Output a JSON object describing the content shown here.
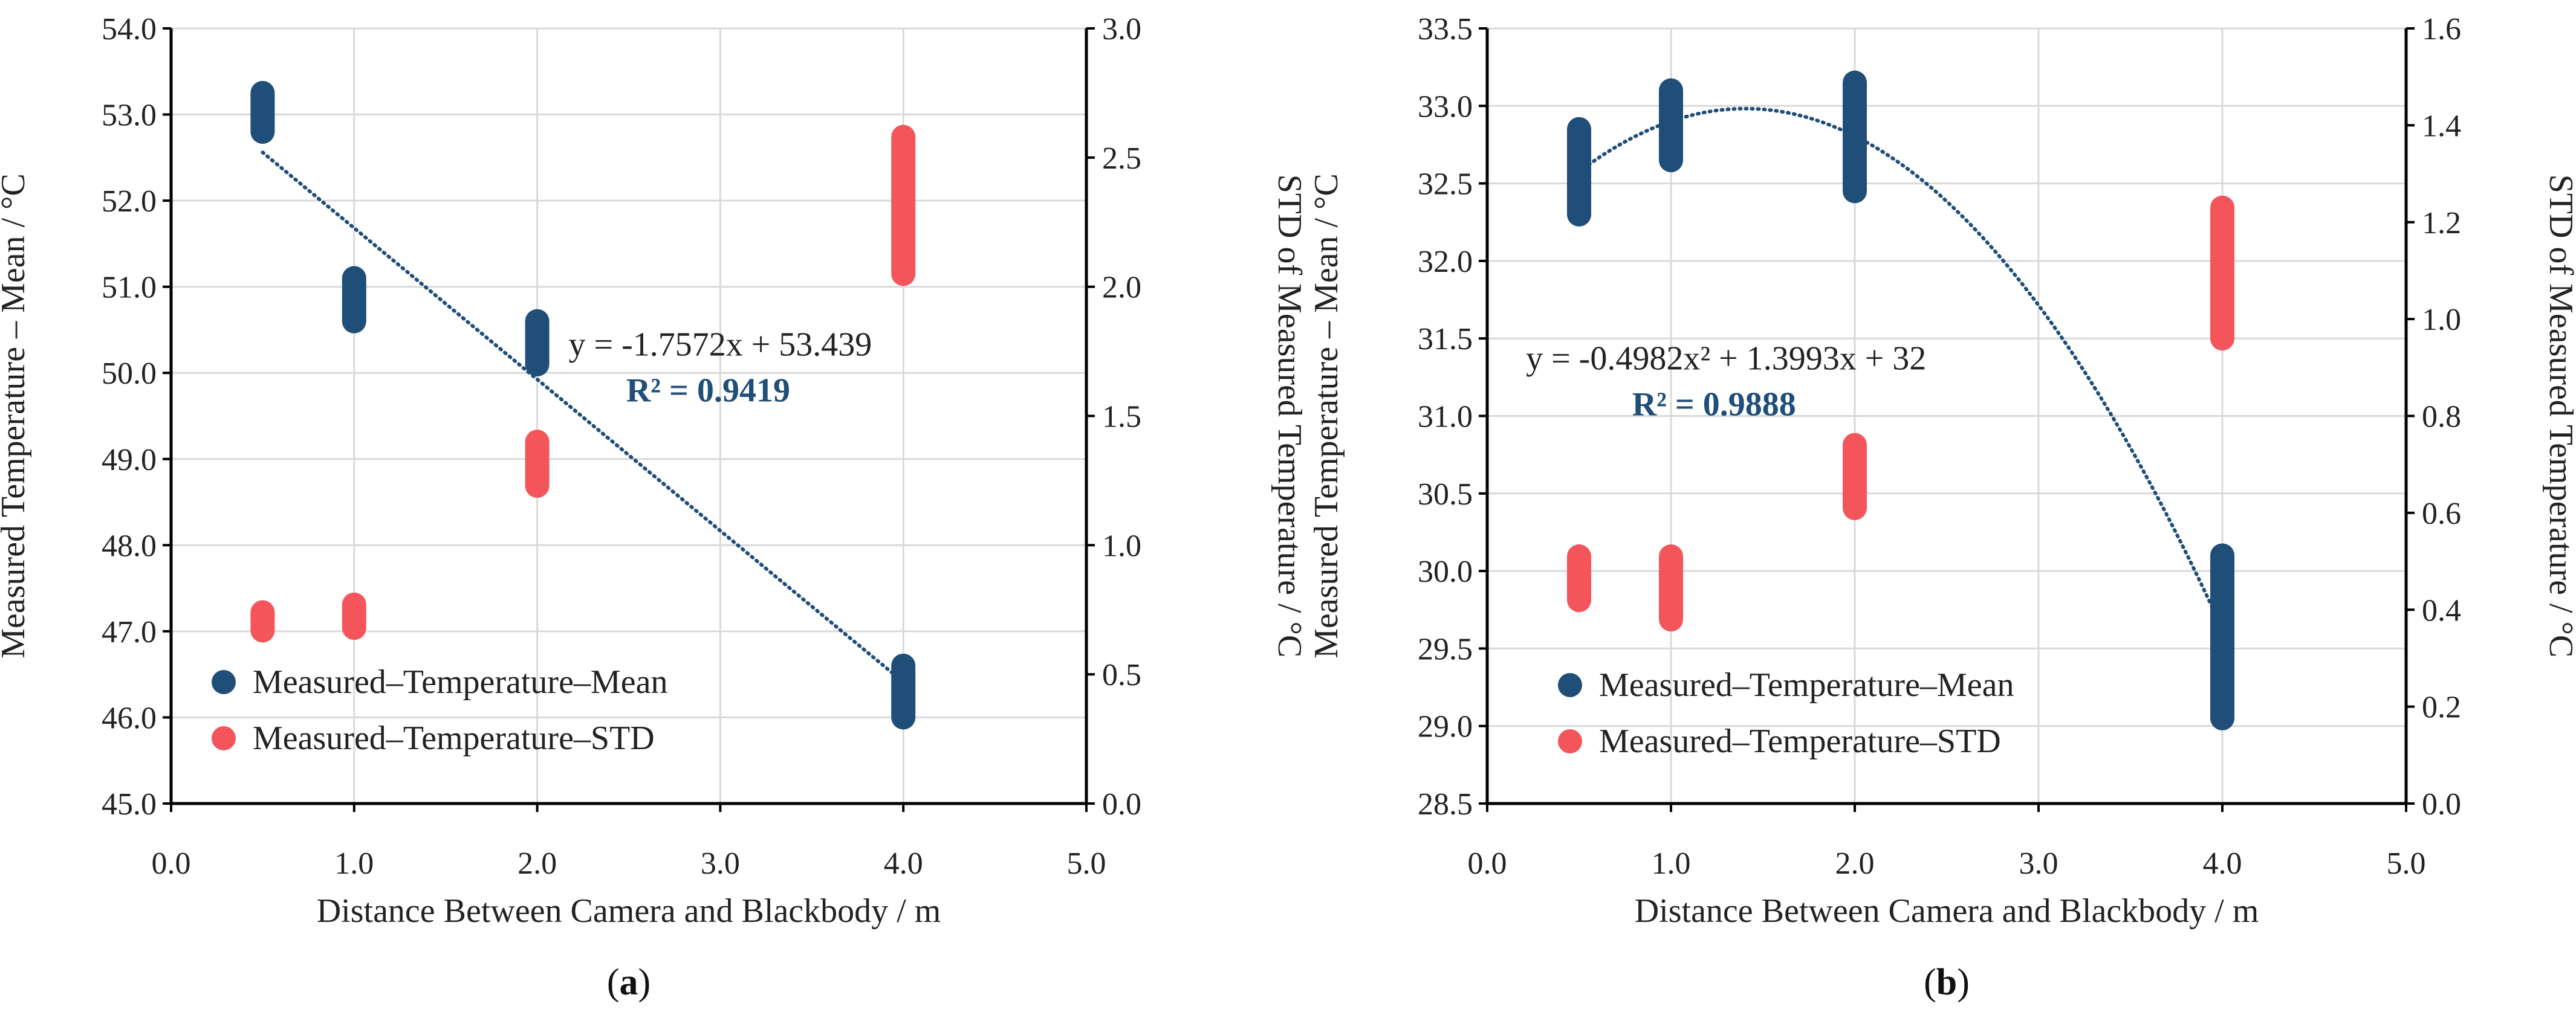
{
  "colors": {
    "mean": "#1F4E79",
    "std": "#F4555A",
    "grid": "#D9D9D9",
    "axis": "#000000",
    "trend": "#1F4E79"
  },
  "chart_data": [
    {
      "id": "a",
      "type": "scatter",
      "panel_label": "a",
      "xlabel": "Distance Between Camera and Blackbody / m",
      "ylabel_left": "Measured Temperature – Mean / °C",
      "ylabel_right": "STD of Measured Temperature / °C",
      "xlim": [
        0,
        5
      ],
      "xticks": [
        "0.0",
        "1.0",
        "2.0",
        "3.0",
        "4.0",
        "5.0"
      ],
      "ylim_left": [
        45,
        54
      ],
      "yticks_left": [
        "45.0",
        "46.0",
        "47.0",
        "48.0",
        "49.0",
        "50.0",
        "51.0",
        "52.0",
        "53.0",
        "54.0"
      ],
      "ylim_right": [
        0,
        3
      ],
      "yticks_right": [
        "0.0",
        "0.5",
        "1.0",
        "1.5",
        "2.0",
        "2.5",
        "3.0"
      ],
      "grid": true,
      "legend_position": "bottom-left",
      "series": [
        {
          "name": "Measured–Temperature–Mean",
          "axis": "left",
          "points": [
            {
              "x": 0.5,
              "ymin": 52.8,
              "ymax": 53.25
            },
            {
              "x": 1.0,
              "ymin": 50.6,
              "ymax": 51.1
            },
            {
              "x": 2.0,
              "ymin": 50.1,
              "ymax": 50.6
            },
            {
              "x": 4.0,
              "ymin": 46.0,
              "ymax": 46.6
            }
          ]
        },
        {
          "name": "Measured–Temperature–STD",
          "axis": "right",
          "points": [
            {
              "x": 0.5,
              "ymin": 0.67,
              "ymax": 0.74
            },
            {
              "x": 1.0,
              "ymin": 0.68,
              "ymax": 0.77
            },
            {
              "x": 2.0,
              "ymin": 1.23,
              "ymax": 1.4
            },
            {
              "x": 4.0,
              "ymin": 2.05,
              "ymax": 2.58
            }
          ]
        }
      ],
      "trendline": {
        "type": "linear",
        "coefficients": [
          53.439,
          -1.7572
        ],
        "x_range": [
          0.5,
          4.0
        ],
        "equation": "y = -1.7572x + 53.439",
        "r2": "R² = 0.9419",
        "label_anchor": {
          "x": 3.0,
          "y": 50.2
        }
      }
    },
    {
      "id": "b",
      "type": "scatter",
      "panel_label": "b",
      "xlabel": "Distance Between Camera and Blackbody / m",
      "ylabel_left": "Measured Temperature – Mean / °C",
      "ylabel_right": "STD of Measured Temperature / °C",
      "xlim": [
        0,
        5
      ],
      "xticks": [
        "0.0",
        "1.0",
        "2.0",
        "3.0",
        "4.0",
        "5.0"
      ],
      "ylim_left": [
        28.5,
        33.5
      ],
      "yticks_left": [
        "28.5",
        "29.0",
        "29.5",
        "30.0",
        "30.5",
        "31.0",
        "31.5",
        "32.0",
        "32.5",
        "33.0",
        "33.5"
      ],
      "ylim_right": [
        0,
        1.6
      ],
      "yticks_right": [
        "0.0",
        "0.2",
        "0.4",
        "0.6",
        "0.8",
        "1.0",
        "1.2",
        "1.4",
        "1.6"
      ],
      "grid": true,
      "legend_position": "bottom-left",
      "series": [
        {
          "name": "Measured–Temperature–Mean",
          "axis": "left",
          "points": [
            {
              "x": 0.5,
              "ymin": 32.3,
              "ymax": 32.85
            },
            {
              "x": 1.0,
              "ymin": 32.65,
              "ymax": 33.1
            },
            {
              "x": 2.0,
              "ymin": 32.45,
              "ymax": 33.15
            },
            {
              "x": 4.0,
              "ymin": 29.05,
              "ymax": 30.1
            }
          ]
        },
        {
          "name": "Measured–Temperature–STD",
          "axis": "right",
          "points": [
            {
              "x": 0.5,
              "ymin": 0.42,
              "ymax": 0.51
            },
            {
              "x": 1.0,
              "ymin": 0.38,
              "ymax": 0.51
            },
            {
              "x": 2.0,
              "ymin": 0.61,
              "ymax": 0.74
            },
            {
              "x": 4.0,
              "ymin": 0.96,
              "ymax": 1.23
            }
          ]
        }
      ],
      "trendline": {
        "type": "polynomial",
        "coefficients": [
          32,
          1.3993,
          -0.4982
        ],
        "x_range": [
          0.5,
          4.0
        ],
        "equation": "y = -0.4982x² + 1.3993x + 32",
        "r2": "R² = 0.9888",
        "label_anchor": {
          "x": 1.3,
          "y": 31.3
        }
      }
    }
  ]
}
